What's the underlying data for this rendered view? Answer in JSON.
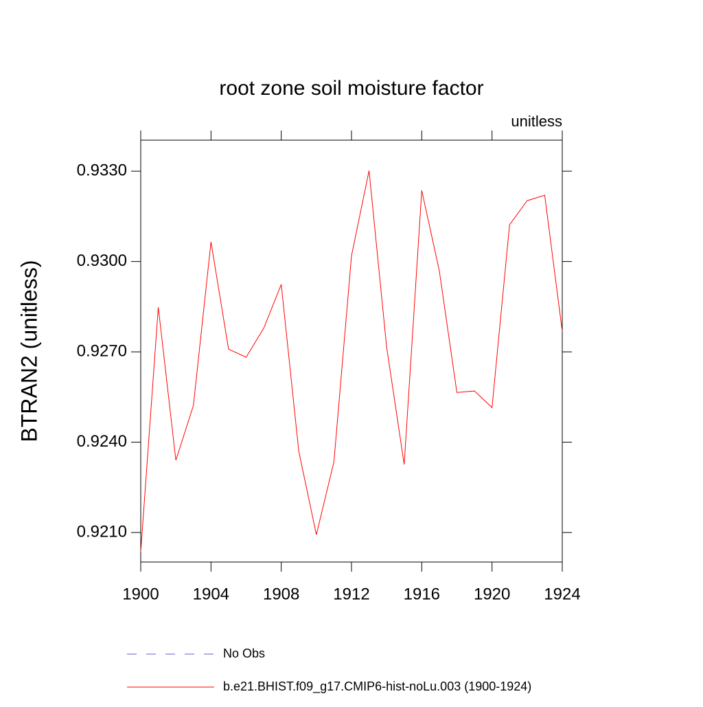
{
  "chart_data": {
    "type": "line",
    "title": "root zone soil moisture factor",
    "subtitle": "unitless",
    "ylabel": "BTRAN2  (unitless)",
    "x": [
      1900,
      1901,
      1902,
      1903,
      1904,
      1905,
      1906,
      1907,
      1908,
      1909,
      1910,
      1911,
      1912,
      1913,
      1914,
      1915,
      1916,
      1917,
      1918,
      1919,
      1920,
      1921,
      1922,
      1923,
      1924
    ],
    "series": [
      {
        "name": "No Obs",
        "color": "#6a5acd",
        "dashed": true,
        "values": [
          null,
          null,
          null,
          null,
          null,
          null,
          null,
          null,
          null,
          null,
          null,
          null,
          null,
          null,
          null,
          null,
          null,
          null,
          null,
          null,
          null,
          null,
          null,
          null,
          null
        ]
      },
      {
        "name": "b.e21.BHIST.f09_g17.CMIP6-hist-noLu.003 (1900-1924)",
        "color": "#ff0000",
        "values": [
          0.92036,
          0.92848,
          0.9234,
          0.92522,
          0.93065,
          0.92709,
          0.92682,
          0.92778,
          0.92924,
          0.92369,
          0.92093,
          0.92335,
          0.93019,
          0.93302,
          0.92716,
          0.92326,
          0.93236,
          0.92969,
          0.92565,
          0.9257,
          0.92515,
          0.93122,
          0.93202,
          0.9322,
          0.92768
        ]
      }
    ],
    "xlim": [
      1900,
      1924
    ],
    "xticks": [
      1900,
      1904,
      1908,
      1912,
      1916,
      1920,
      1924
    ],
    "ylim": [
      0.92002,
      0.93403
    ],
    "yticks": [
      {
        "value": 0.921,
        "label": "0.9210"
      },
      {
        "value": 0.924,
        "label": "0.9240"
      },
      {
        "value": 0.927,
        "label": "0.9270"
      },
      {
        "value": 0.93,
        "label": "0.9300"
      },
      {
        "value": 0.933,
        "label": "0.9330"
      }
    ]
  }
}
